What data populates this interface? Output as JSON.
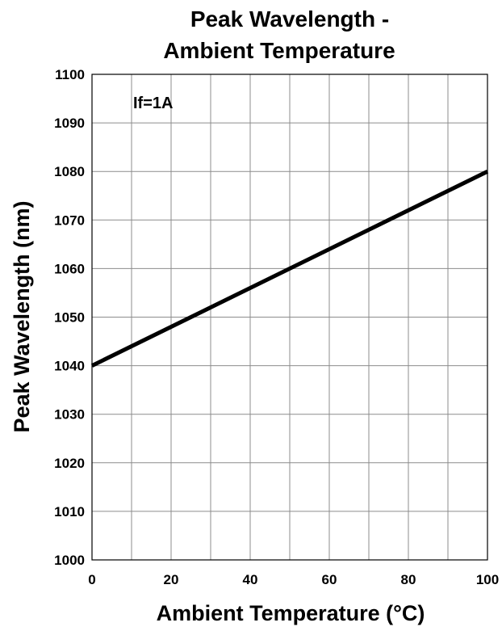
{
  "chart_data": {
    "type": "line",
    "title_lines": [
      "Peak Wavelength -",
      "Ambient Temperature"
    ],
    "xlabel": "Ambient Temperature (°C)",
    "ylabel": "Peak Wavelength (nm)",
    "xlim": [
      0,
      100
    ],
    "ylim": [
      1000,
      1100
    ],
    "x_ticks": [
      0,
      20,
      40,
      60,
      80,
      100
    ],
    "y_ticks": [
      1000,
      1010,
      1020,
      1030,
      1040,
      1050,
      1060,
      1070,
      1080,
      1090,
      1100
    ],
    "x_grid_step": 10,
    "y_grid_step": 10,
    "grid": true,
    "annotation": "If=1A",
    "series": [
      {
        "x": [
          0,
          100
        ],
        "y": [
          1040,
          1080
        ]
      }
    ]
  }
}
